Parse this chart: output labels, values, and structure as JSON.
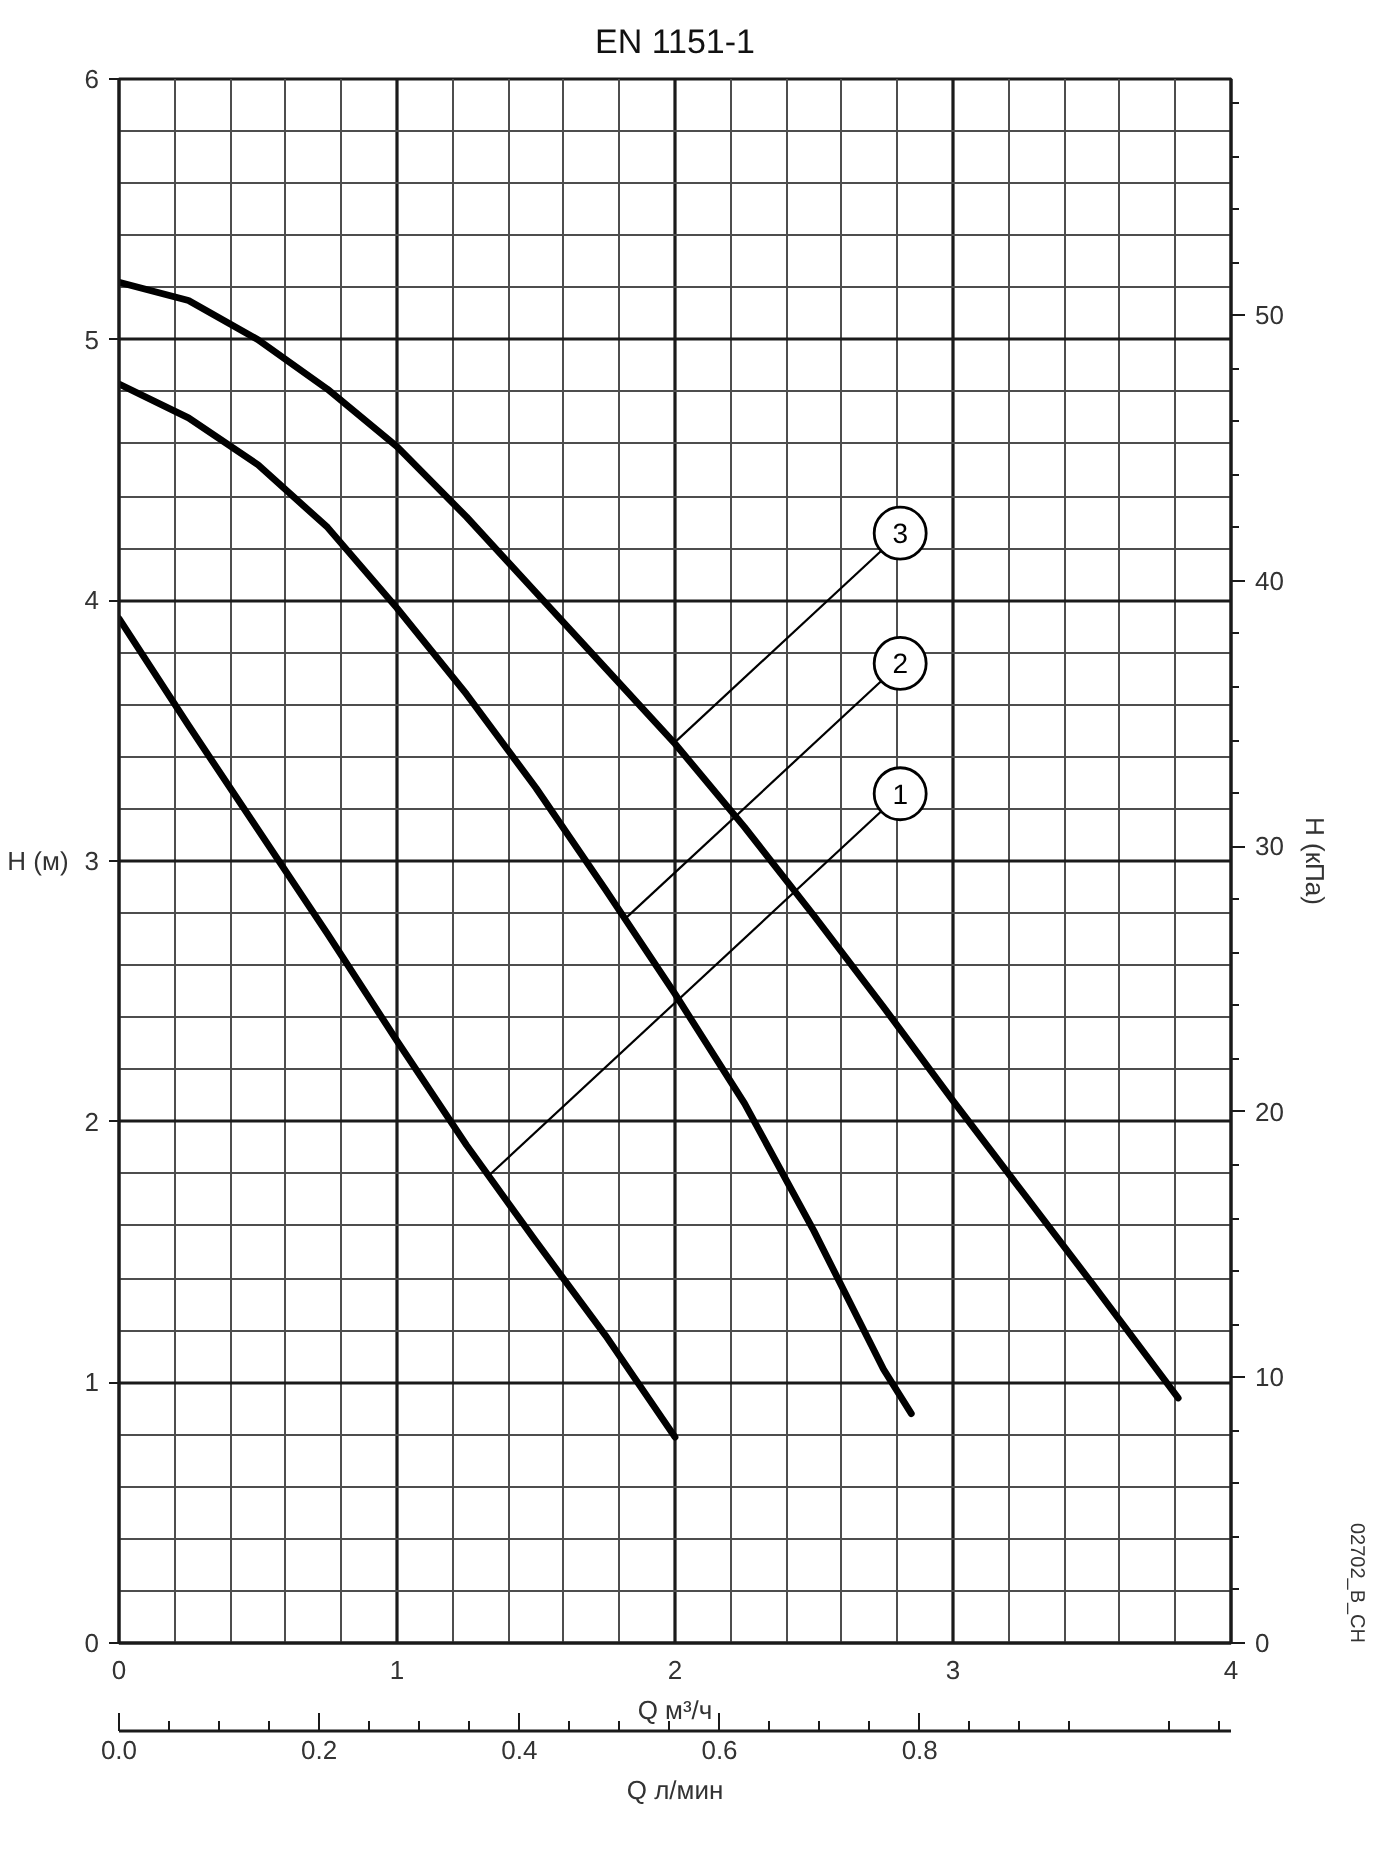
{
  "chart_data": {
    "type": "line",
    "title": "EN 1151-1",
    "xlabel": "Q м³/ч",
    "ylabel": "H (м)",
    "y2label": "H (кПа)",
    "x2label": "Q л/мин",
    "xlim": [
      0,
      4
    ],
    "xticks": [
      0,
      1,
      2,
      3,
      4
    ],
    "ylim": [
      0,
      6
    ],
    "yticks": [
      0,
      1,
      2,
      3,
      4,
      5,
      6
    ],
    "y2lim": [
      0,
      58.9
    ],
    "y2ticks": [
      0,
      10,
      20,
      30,
      40,
      50
    ],
    "x2lim": [
      0,
      1.111
    ],
    "x2ticks": [
      {
        "value": 0,
        "label": "0.0"
      },
      0.2,
      0.4,
      0.6,
      0.8
    ],
    "grid": true,
    "line_style": "solid",
    "annotations": [
      "02702_B_CH"
    ],
    "series": [
      {
        "name": "1",
        "color": "#000000",
        "x": [
          0,
          0.25,
          0.5,
          0.75,
          1.0,
          1.25,
          1.5,
          1.75,
          2.0
        ],
        "values": [
          3.93,
          3.52,
          3.12,
          2.72,
          2.31,
          1.91,
          1.54,
          1.18,
          0.79
        ]
      },
      {
        "name": "2",
        "color": "#000000",
        "x": [
          0,
          0.25,
          0.5,
          0.75,
          1.0,
          1.25,
          1.5,
          1.75,
          2.0,
          2.25,
          2.5,
          2.75,
          2.85
        ],
        "values": [
          4.83,
          4.7,
          4.52,
          4.28,
          3.97,
          3.64,
          3.28,
          2.89,
          2.49,
          2.07,
          1.58,
          1.05,
          0.88
        ]
      },
      {
        "name": "3",
        "color": "#000000",
        "x": [
          0,
          0.25,
          0.5,
          0.75,
          1.0,
          1.25,
          1.5,
          1.75,
          2.0,
          2.25,
          2.5,
          2.75,
          3.0,
          3.25,
          3.5,
          3.81
        ],
        "values": [
          5.22,
          5.15,
          5.0,
          4.81,
          4.59,
          4.32,
          4.03,
          3.74,
          3.45,
          3.13,
          2.79,
          2.44,
          2.08,
          1.73,
          1.38,
          0.94
        ]
      }
    ]
  }
}
